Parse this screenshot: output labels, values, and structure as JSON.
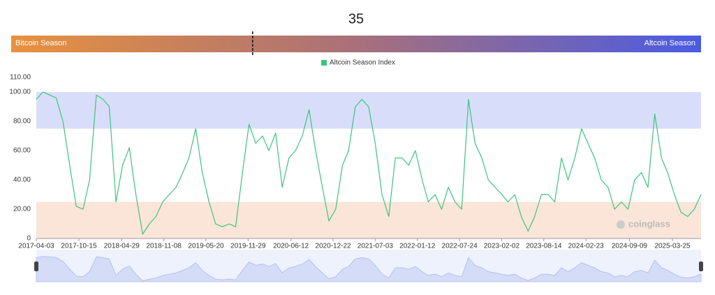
{
  "gauge": {
    "value": 35,
    "range": [
      0,
      100
    ],
    "left_label": "Bitcoin Season",
    "right_label": "Altcoin Season",
    "colors": [
      "#e8913e",
      "#a8707a",
      "#4a5be3"
    ]
  },
  "chart_data": {
    "type": "line",
    "x": [
      "2017-04-03",
      "2017-05-03",
      "2017-06-03",
      "2017-07-03",
      "2017-08-03",
      "2017-09-03",
      "2017-10-03",
      "2017-11-03",
      "2017-12-03",
      "2018-01-03",
      "2018-02-03",
      "2018-03-03",
      "2018-04-03",
      "2018-05-03",
      "2018-06-03",
      "2018-07-03",
      "2018-08-03",
      "2018-09-03",
      "2018-10-03",
      "2018-11-03",
      "2018-12-03",
      "2019-01-03",
      "2019-02-03",
      "2019-03-03",
      "2019-04-03",
      "2019-05-03",
      "2019-06-03",
      "2019-07-03",
      "2019-08-03",
      "2019-09-03",
      "2019-10-03",
      "2019-11-03",
      "2019-12-03",
      "2020-01-03",
      "2020-02-03",
      "2020-03-03",
      "2020-04-03",
      "2020-05-03",
      "2020-06-03",
      "2020-07-03",
      "2020-08-03",
      "2020-09-03",
      "2020-10-03",
      "2020-11-03",
      "2020-12-03",
      "2021-01-03",
      "2021-02-03",
      "2021-03-03",
      "2021-04-03",
      "2021-05-03",
      "2021-06-03",
      "2021-07-03",
      "2021-08-03",
      "2021-09-03",
      "2021-10-03",
      "2021-11-03",
      "2021-12-03",
      "2022-01-03",
      "2022-02-03",
      "2022-03-03",
      "2022-04-03",
      "2022-05-03",
      "2022-06-03",
      "2022-07-03",
      "2022-08-03",
      "2022-09-03",
      "2022-10-03",
      "2022-11-03",
      "2022-12-03",
      "2023-01-03",
      "2023-02-03",
      "2023-03-03",
      "2023-04-03",
      "2023-05-03",
      "2023-06-03",
      "2023-07-03",
      "2023-08-03",
      "2023-09-03",
      "2023-10-03",
      "2023-11-03",
      "2023-12-03",
      "2024-01-03",
      "2024-02-03",
      "2024-03-03",
      "2024-04-03",
      "2024-05-03",
      "2024-06-03",
      "2024-07-03",
      "2024-08-03",
      "2024-09-03",
      "2024-10-03",
      "2024-11-03",
      "2024-12-03",
      "2025-01-03",
      "2025-02-03",
      "2025-03-03",
      "2025-04-03",
      "2025-05-03",
      "2025-06-03",
      "2025-07-03",
      "2025-08-03"
    ],
    "series": [
      {
        "name": "Altcoin Season Index",
        "color": "#3cc47c",
        "values": [
          95,
          100,
          98,
          96,
          80,
          50,
          22,
          20,
          40,
          98,
          95,
          90,
          25,
          50,
          62,
          30,
          3,
          10,
          15,
          25,
          30,
          35,
          45,
          55,
          75,
          45,
          25,
          10,
          8,
          10,
          8,
          45,
          78,
          65,
          70,
          60,
          72,
          35,
          55,
          60,
          70,
          88,
          60,
          35,
          12,
          20,
          50,
          60,
          90,
          95,
          90,
          65,
          30,
          15,
          55,
          55,
          50,
          60,
          40,
          25,
          30,
          20,
          35,
          25,
          20,
          95,
          65,
          55,
          40,
          35,
          30,
          25,
          30,
          15,
          5,
          15,
          30,
          30,
          25,
          55,
          40,
          55,
          75,
          65,
          55,
          40,
          35,
          20,
          25,
          20,
          40,
          45,
          35,
          85,
          55,
          45,
          30,
          18,
          15,
          20,
          30
        ]
      }
    ],
    "xlim": [
      "2017-04-03",
      "2025-08-03"
    ],
    "xticks": [
      "2017-04-03",
      "2017-10-15",
      "2018-04-29",
      "2018-11-08",
      "2019-05-20",
      "2019-11-29",
      "2020-06-12",
      "2020-12-22",
      "2021-07-03",
      "2022-01-12",
      "2022-07-24",
      "2023-02-02",
      "2023-08-14",
      "2024-02-23",
      "2024-09-09",
      "2025-03-25"
    ],
    "ylim": [
      0,
      110
    ],
    "yticks": [
      0,
      {
        "value": 20,
        "label": "20.00"
      },
      {
        "value": 40,
        "label": "40.00"
      },
      {
        "value": 60,
        "label": "60.00"
      },
      {
        "value": 80,
        "label": "80.00"
      },
      {
        "value": 100,
        "label": "100.00"
      },
      {
        "value": 110,
        "label": "110.00"
      }
    ],
    "bands": [
      {
        "from": 75,
        "to": 100,
        "color": "#d8defa"
      },
      {
        "from": 0,
        "to": 25,
        "color": "#fae5d8"
      }
    ],
    "legend": "top",
    "watermark": "coinglass"
  }
}
